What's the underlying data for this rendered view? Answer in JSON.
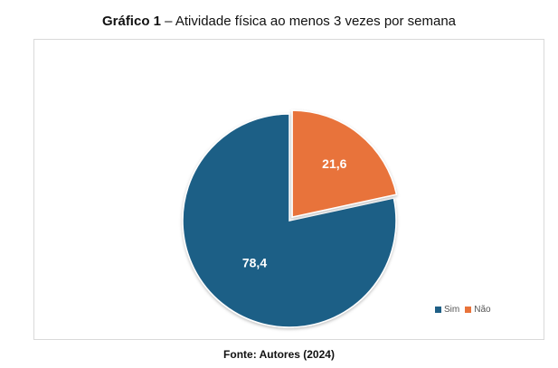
{
  "caption": {
    "label": "Gráfico 1",
    "separator": " – ",
    "text": "Atividade física ao menos 3 vezes por semana"
  },
  "source": "Fonte: Autores (2024)",
  "colors": {
    "sim": "#1f5f86",
    "nao": "#e8733a"
  },
  "chart_data": {
    "type": "pie",
    "title": "Gráfico 1 – Atividade física ao menos 3 vezes por semana",
    "categories": [
      "Sim",
      "Não"
    ],
    "values": [
      78.4,
      21.6
    ],
    "data_labels": [
      "78,4",
      "21,6"
    ],
    "highlighted_slice": "Não",
    "legend_position": "bottom-right",
    "legend": [
      "Sim",
      "Não"
    ]
  }
}
